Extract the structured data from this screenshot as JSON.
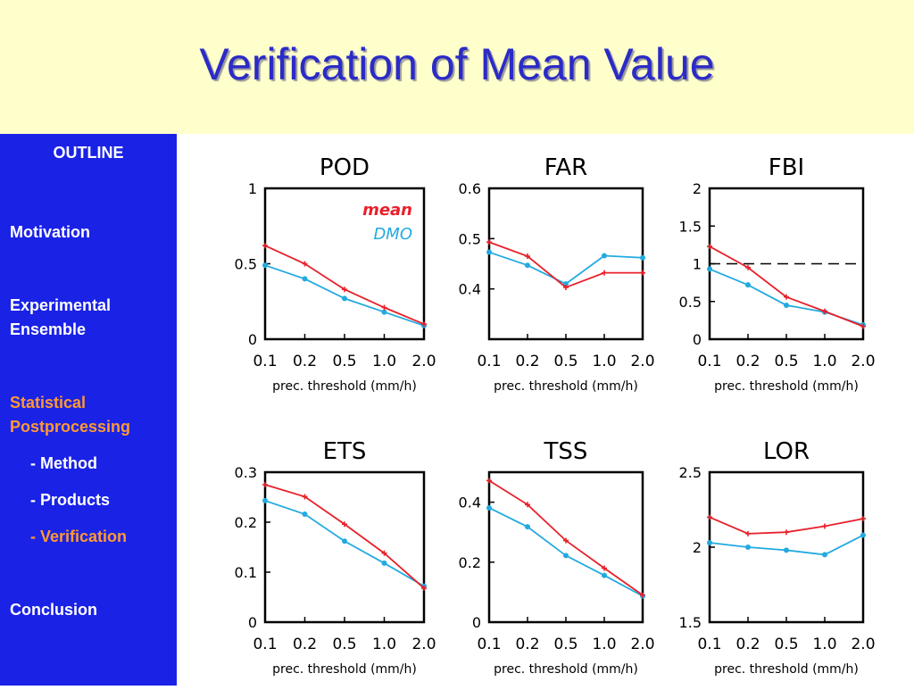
{
  "slide": {
    "title": "Verification of Mean Value"
  },
  "sidebar": {
    "heading": "OUTLINE",
    "items": [
      {
        "lines": [
          "Motivation"
        ],
        "active": false
      },
      {
        "lines": [
          "Experimental",
          "Ensemble"
        ],
        "active": false
      },
      {
        "lines": [
          "Statistical",
          "Postprocessing"
        ],
        "active": true
      },
      {
        "lines": [
          "- Method"
        ],
        "active": false
      },
      {
        "lines": [
          "- Products"
        ],
        "active": false
      },
      {
        "lines": [
          "- Verification"
        ],
        "active": true
      },
      {
        "lines": [
          "Conclusion"
        ],
        "active": false
      }
    ]
  },
  "legend": {
    "mean_label": "mean",
    "dmo_label": "DMO"
  },
  "colors": {
    "mean": "#e8202a",
    "dmo": "#22aae0",
    "header_bg": "#ffffcc",
    "sidebar_bg": "#1a22e6",
    "title": "#2b2bc8",
    "active_nav": "#ff9933"
  },
  "chart_data": [
    {
      "type": "line",
      "title": "POD",
      "xlabel": "prec. threshold (mm/h)",
      "categories": [
        "0.1",
        "0.2",
        "0.5",
        "1.0",
        "2.0"
      ],
      "ylim": [
        0,
        1
      ],
      "yticks": [
        "0",
        "0.5",
        "1"
      ],
      "series": [
        {
          "name": "mean",
          "values": [
            0.62,
            0.5,
            0.33,
            0.21,
            0.1
          ]
        },
        {
          "name": "DMO",
          "values": [
            0.49,
            0.4,
            0.27,
            0.18,
            0.09
          ]
        }
      ],
      "legend": true
    },
    {
      "type": "line",
      "title": "FAR",
      "xlabel": "prec. threshold (mm/h)",
      "categories": [
        "0.1",
        "0.2",
        "0.5",
        "1.0",
        "2.0"
      ],
      "ylim": [
        0.3,
        0.6
      ],
      "yticks": [
        "0.4",
        "0.5",
        "0.6"
      ],
      "series": [
        {
          "name": "mean",
          "values": [
            0.493,
            0.465,
            0.403,
            0.432,
            0.432
          ]
        },
        {
          "name": "DMO",
          "values": [
            0.473,
            0.447,
            0.41,
            0.466,
            0.462
          ]
        }
      ]
    },
    {
      "type": "line",
      "title": "FBI",
      "xlabel": "prec. threshold (mm/h)",
      "categories": [
        "0.1",
        "0.2",
        "0.5",
        "1.0",
        "2.0"
      ],
      "ylim": [
        0,
        2
      ],
      "yticks": [
        "0",
        "0.5",
        "1",
        "1.5",
        "2"
      ],
      "reference_line": 1,
      "series": [
        {
          "name": "mean",
          "values": [
            1.23,
            0.95,
            0.56,
            0.37,
            0.17
          ]
        },
        {
          "name": "DMO",
          "values": [
            0.93,
            0.72,
            0.45,
            0.36,
            0.19
          ]
        }
      ]
    },
    {
      "type": "line",
      "title": "ETS",
      "xlabel": "prec. threshold (mm/h)",
      "categories": [
        "0.1",
        "0.2",
        "0.5",
        "1.0",
        "2.0"
      ],
      "ylim": [
        0,
        0.3
      ],
      "yticks": [
        "0",
        "0.1",
        "0.2",
        "0.3"
      ],
      "series": [
        {
          "name": "mean",
          "values": [
            0.275,
            0.251,
            0.196,
            0.138,
            0.068
          ]
        },
        {
          "name": "DMO",
          "values": [
            0.243,
            0.216,
            0.162,
            0.118,
            0.072
          ]
        }
      ]
    },
    {
      "type": "line",
      "title": "TSS",
      "xlabel": "prec. threshold (mm/h)",
      "categories": [
        "0.1",
        "0.2",
        "0.5",
        "1.0",
        "2.0"
      ],
      "ylim": [
        0,
        0.5
      ],
      "yticks": [
        "0",
        "0.2",
        "0.4"
      ],
      "series": [
        {
          "name": "mean",
          "values": [
            0.472,
            0.392,
            0.272,
            0.18,
            0.09
          ]
        },
        {
          "name": "DMO",
          "values": [
            0.381,
            0.318,
            0.222,
            0.156,
            0.087
          ]
        }
      ]
    },
    {
      "type": "line",
      "title": "LOR",
      "xlabel": "prec. threshold (mm/h)",
      "categories": [
        "0.1",
        "0.2",
        "0.5",
        "1.0",
        "2.0"
      ],
      "ylim": [
        1.5,
        2.5
      ],
      "yticks": [
        "1.5",
        "2",
        "2.5"
      ],
      "series": [
        {
          "name": "mean",
          "values": [
            2.2,
            2.09,
            2.1,
            2.14,
            2.19
          ]
        },
        {
          "name": "DMO",
          "values": [
            2.03,
            2.0,
            1.98,
            1.95,
            2.08
          ]
        }
      ]
    }
  ]
}
